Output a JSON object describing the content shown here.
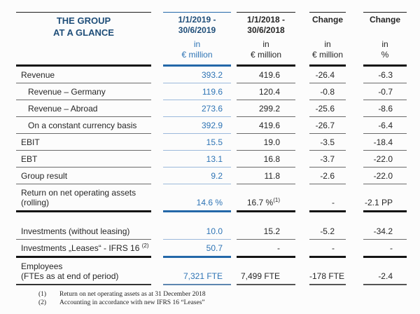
{
  "table": {
    "title_line1": "THE GROUP",
    "title_line2": "AT A GLANCE",
    "columns": {
      "col2019": {
        "period_line1": "1/1/2019 -",
        "period_line2": "30/6/2019",
        "unit_line1": "in",
        "unit_line2": "€ million"
      },
      "col2018": {
        "period_line1": "1/1/2018 -",
        "period_line2": "30/6/2018",
        "unit_line1": "in",
        "unit_line2": "€ million"
      },
      "change_abs": {
        "label": "Change",
        "unit_line1": "in",
        "unit_line2": "€ million"
      },
      "change_pct": {
        "label": "Change",
        "unit_line1": "in",
        "unit_line2": "%"
      }
    },
    "rows": [
      {
        "label": "Revenue",
        "v2019": "393.2",
        "v2018": "419.6",
        "change_eur": "-26.4",
        "change_pct": "-6.3"
      },
      {
        "label": "Revenue – Germany",
        "v2019": "119.6",
        "v2018": "120.4",
        "change_eur": "-0.8",
        "change_pct": "-0.7"
      },
      {
        "label": "Revenue – Abroad",
        "v2019": "273.6",
        "v2018": "299.2",
        "change_eur": "-25.6",
        "change_pct": "-8.6"
      },
      {
        "label": "On a constant currency basis",
        "v2019": "392.9",
        "v2018": "419.6",
        "change_eur": "-26.7",
        "change_pct": "-6.4"
      },
      {
        "label": "EBIT",
        "v2019": "15.5",
        "v2018": "19.0",
        "change_eur": "-3.5",
        "change_pct": "-18.4"
      },
      {
        "label": "EBT",
        "v2019": "13.1",
        "v2018": "16.8",
        "change_eur": "-3.7",
        "change_pct": "-22.0"
      },
      {
        "label": "Group result",
        "v2019": "9.2",
        "v2018": "11.8",
        "change_eur": "-2.6",
        "change_pct": "-22.0"
      },
      {
        "label": "Return on net operating assets",
        "label_line2": "(rolling)",
        "v2019": "14.6 %",
        "v2018": "16.7 %",
        "v2018_sup": "(1)",
        "change_eur": "-",
        "change_pct": "-2.1 PP"
      },
      {
        "label": "Investments (without leasing)",
        "v2019": "10.0",
        "v2018": "15.2",
        "change_eur": "-5.2",
        "change_pct": "-34.2"
      },
      {
        "label": "Investments „Leases“ - IFRS 16",
        "label_sup": "(2)",
        "v2019": "50.7",
        "v2018": "-",
        "change_eur": "-",
        "change_pct": "-"
      },
      {
        "label": "Employees",
        "label_line2": "(FTEs as at end of period)",
        "v2019": "7,321 FTE",
        "v2018": "7,499 FTE",
        "change_eur": "-178 FTE",
        "change_pct": "-2.4"
      }
    ]
  },
  "footnotes": [
    {
      "num": "(1)",
      "text": "Return on net operating assets as at 31 December 2018"
    },
    {
      "num": "(2)",
      "text": "Accounting in accordance with new IFRS 16 “Leases”"
    }
  ],
  "chart_data": {
    "type": "table",
    "columns": [
      "THE GROUP AT A GLANCE",
      "1/1/2019 - 30/6/2019 in € million",
      "1/1/2018 - 30/6/2018 in € million",
      "Change in € million",
      "Change in %"
    ],
    "rows": [
      [
        "Revenue",
        "393.2",
        "419.6",
        "-26.4",
        "-6.3"
      ],
      [
        "Revenue – Germany",
        "119.6",
        "120.4",
        "-0.8",
        "-0.7"
      ],
      [
        "Revenue – Abroad",
        "273.6",
        "299.2",
        "-25.6",
        "-8.6"
      ],
      [
        "On a constant currency basis",
        "392.9",
        "419.6",
        "-26.7",
        "-6.4"
      ],
      [
        "EBIT",
        "15.5",
        "19.0",
        "-3.5",
        "-18.4"
      ],
      [
        "EBT",
        "13.1",
        "16.8",
        "-3.7",
        "-22.0"
      ],
      [
        "Group result",
        "9.2",
        "11.8",
        "-2.6",
        "-22.0"
      ],
      [
        "Return on net operating assets (rolling)",
        "14.6 %",
        "16.7 % (1)",
        "-",
        "-2.1 PP"
      ],
      [
        "Investments (without leasing)",
        "10.0",
        "15.2",
        "-5.2",
        "-34.2"
      ],
      [
        "Investments „Leases“ - IFRS 16 (2)",
        "50.7",
        "-",
        "-",
        "-"
      ],
      [
        "Employees (FTEs as at end of period)",
        "7,321 FTE",
        "7,499 FTE",
        "-178 FTE",
        "-2.4"
      ]
    ]
  },
  "colors": {
    "title_blue": "#1F4E79",
    "accent_blue": "#2E74B5",
    "line_blue": "#2468A8",
    "light_blue_line": "#9CB9DB",
    "text": "#262626",
    "line_dark": "#141414",
    "line_gray": "#6B6B6B"
  }
}
